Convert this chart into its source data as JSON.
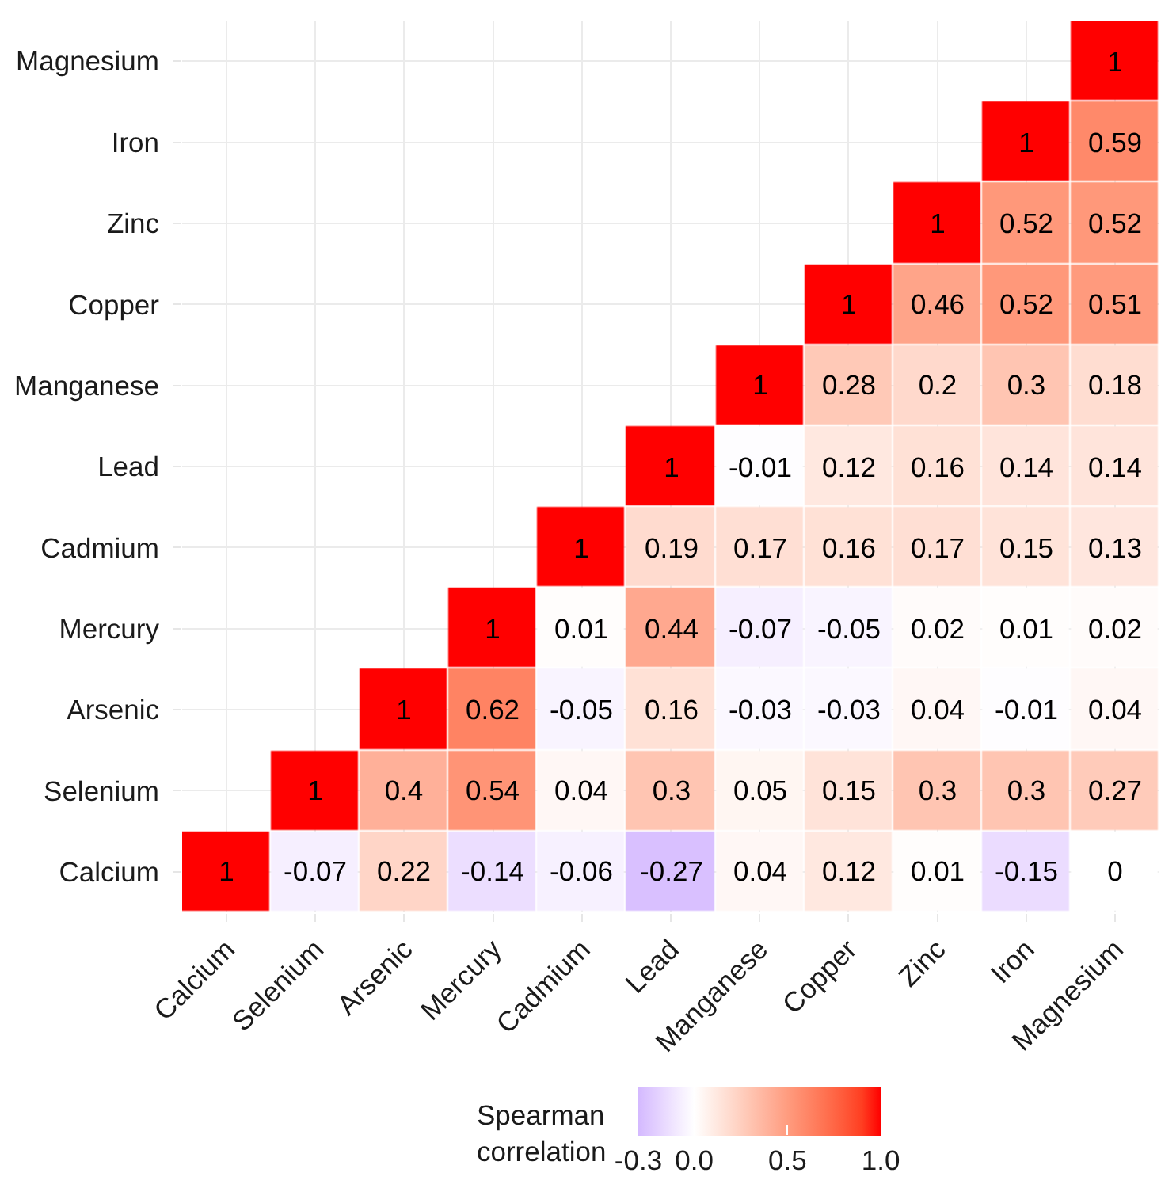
{
  "chart_data": {
    "type": "heatmap",
    "categories": [
      "Calcium",
      "Selenium",
      "Arsenic",
      "Mercury",
      "Cadmium",
      "Lead",
      "Manganese",
      "Copper",
      "Zinc",
      "Iron",
      "Magnesium"
    ],
    "y_categories": [
      "Magnesium",
      "Iron",
      "Zinc",
      "Copper",
      "Manganese",
      "Lead",
      "Cadmium",
      "Mercury",
      "Arsenic",
      "Selenium",
      "Calcium"
    ],
    "cells": [
      [
        null,
        null,
        null,
        null,
        null,
        null,
        null,
        null,
        null,
        null,
        1
      ],
      [
        null,
        null,
        null,
        null,
        null,
        null,
        null,
        null,
        null,
        1,
        0.59
      ],
      [
        null,
        null,
        null,
        null,
        null,
        null,
        null,
        null,
        1,
        0.52,
        0.52
      ],
      [
        null,
        null,
        null,
        null,
        null,
        null,
        null,
        1,
        0.46,
        0.52,
        0.51
      ],
      [
        null,
        null,
        null,
        null,
        null,
        null,
        1,
        0.28,
        0.2,
        0.3,
        0.18
      ],
      [
        null,
        null,
        null,
        null,
        null,
        1,
        -0.01,
        0.12,
        0.16,
        0.14,
        0.14
      ],
      [
        null,
        null,
        null,
        null,
        1,
        0.19,
        0.17,
        0.16,
        0.17,
        0.15,
        0.13
      ],
      [
        null,
        null,
        null,
        1,
        0.01,
        0.44,
        -0.07,
        -0.05,
        0.02,
        0.01,
        0.02
      ],
      [
        null,
        null,
        1,
        0.62,
        -0.05,
        0.16,
        -0.03,
        -0.03,
        0.04,
        -0.01,
        0.04
      ],
      [
        null,
        1,
        0.4,
        0.54,
        0.04,
        0.3,
        0.05,
        0.15,
        0.3,
        0.3,
        0.27
      ],
      [
        1,
        -0.07,
        0.22,
        -0.14,
        -0.06,
        -0.27,
        0.04,
        0.12,
        0.01,
        -0.15,
        0
      ]
    ],
    "data_labels": true,
    "clabel": "Spearman\ncorrelation",
    "clim": [
      -0.3,
      1
    ],
    "cticks": [
      -0.3,
      {
        "value": 0,
        "label": "0.0"
      },
      0.5,
      {
        "value": 1,
        "label": "1.0"
      }
    ],
    "colors": [
      "#d4b9ff",
      "#e3d0ff",
      "#f2e8ff",
      "#ffffff",
      "#ffece5",
      "#ffd9cc",
      "#ffc5b2",
      "#ffb099",
      "#ff9c7f",
      "#ff8768",
      "#ff7251",
      "#ff5a3a",
      "#ff3e21",
      "#ff0000"
    ],
    "grid": true
  }
}
